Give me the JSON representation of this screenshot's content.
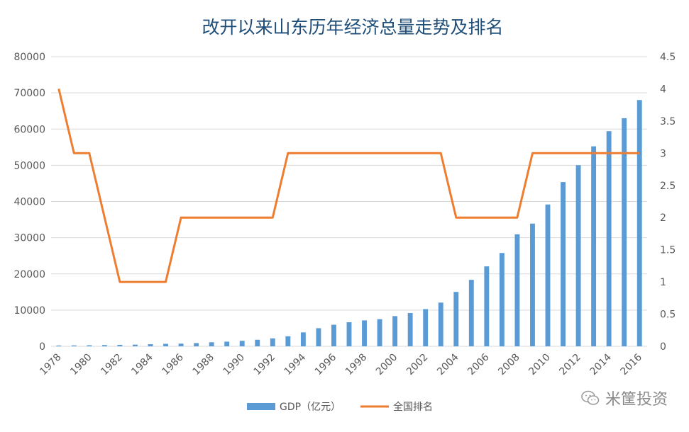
{
  "chart_data": {
    "type": "bar+line",
    "title": "改开以来山东历年经济总量走势及排名",
    "x": [
      "1978",
      "1979",
      "1980",
      "1981",
      "1982",
      "1983",
      "1984",
      "1985",
      "1986",
      "1987",
      "1988",
      "1989",
      "1990",
      "1991",
      "1992",
      "1993",
      "1994",
      "1995",
      "1996",
      "1997",
      "1998",
      "1999",
      "2000",
      "2001",
      "2002",
      "2003",
      "2004",
      "2005",
      "2006",
      "2007",
      "2008",
      "2009",
      "2010",
      "2011",
      "2012",
      "2013",
      "2014",
      "2015",
      "2016"
    ],
    "x_tick_labels": [
      "1978",
      "1980",
      "1982",
      "1984",
      "1986",
      "1988",
      "1990",
      "1992",
      "1994",
      "1996",
      "1998",
      "2000",
      "2002",
      "2004",
      "2006",
      "2008",
      "2010",
      "2012",
      "2014",
      "2016"
    ],
    "left_axis": {
      "ticks": [
        "0",
        "10000",
        "20000",
        "30000",
        "40000",
        "50000",
        "60000",
        "70000",
        "80000"
      ],
      "ylim": [
        0,
        80000
      ]
    },
    "right_axis": {
      "ticks": [
        "0",
        "0.5",
        "1",
        "1.5",
        "2",
        "2.5",
        "3",
        "3.5",
        "4",
        "4.5"
      ],
      "ylim": [
        0,
        4.5
      ]
    },
    "series": [
      {
        "name": "GDP（亿元）",
        "type": "bar",
        "axis": "left",
        "color": "#5b9bd5",
        "values": [
          225,
          251,
          292,
          346,
          396,
          460,
          582,
          681,
          743,
          892,
          1118,
          1294,
          1512,
          1810,
          2197,
          2770,
          3844,
          5002,
          5960,
          6650,
          7162,
          7493,
          8337,
          9195,
          10275,
          12078,
          15021,
          18367,
          22077,
          25776,
          30933,
          33897,
          39170,
          45362,
          50013,
          55230,
          59427,
          63002,
          68024
        ]
      },
      {
        "name": "全国排名",
        "type": "line",
        "axis": "right",
        "color": "#ed7d31",
        "values": [
          4,
          3,
          3,
          2,
          1,
          1,
          1,
          1,
          2,
          2,
          2,
          2,
          2,
          2,
          2,
          3,
          3,
          3,
          3,
          3,
          3,
          3,
          3,
          3,
          3,
          3,
          2,
          2,
          2,
          2,
          2,
          3,
          3,
          3,
          3,
          3,
          3,
          3,
          3
        ]
      }
    ],
    "grid": true,
    "legend": "bottom-center"
  },
  "watermark": {
    "text": "米筐投资",
    "icon": "wechat-icon"
  }
}
